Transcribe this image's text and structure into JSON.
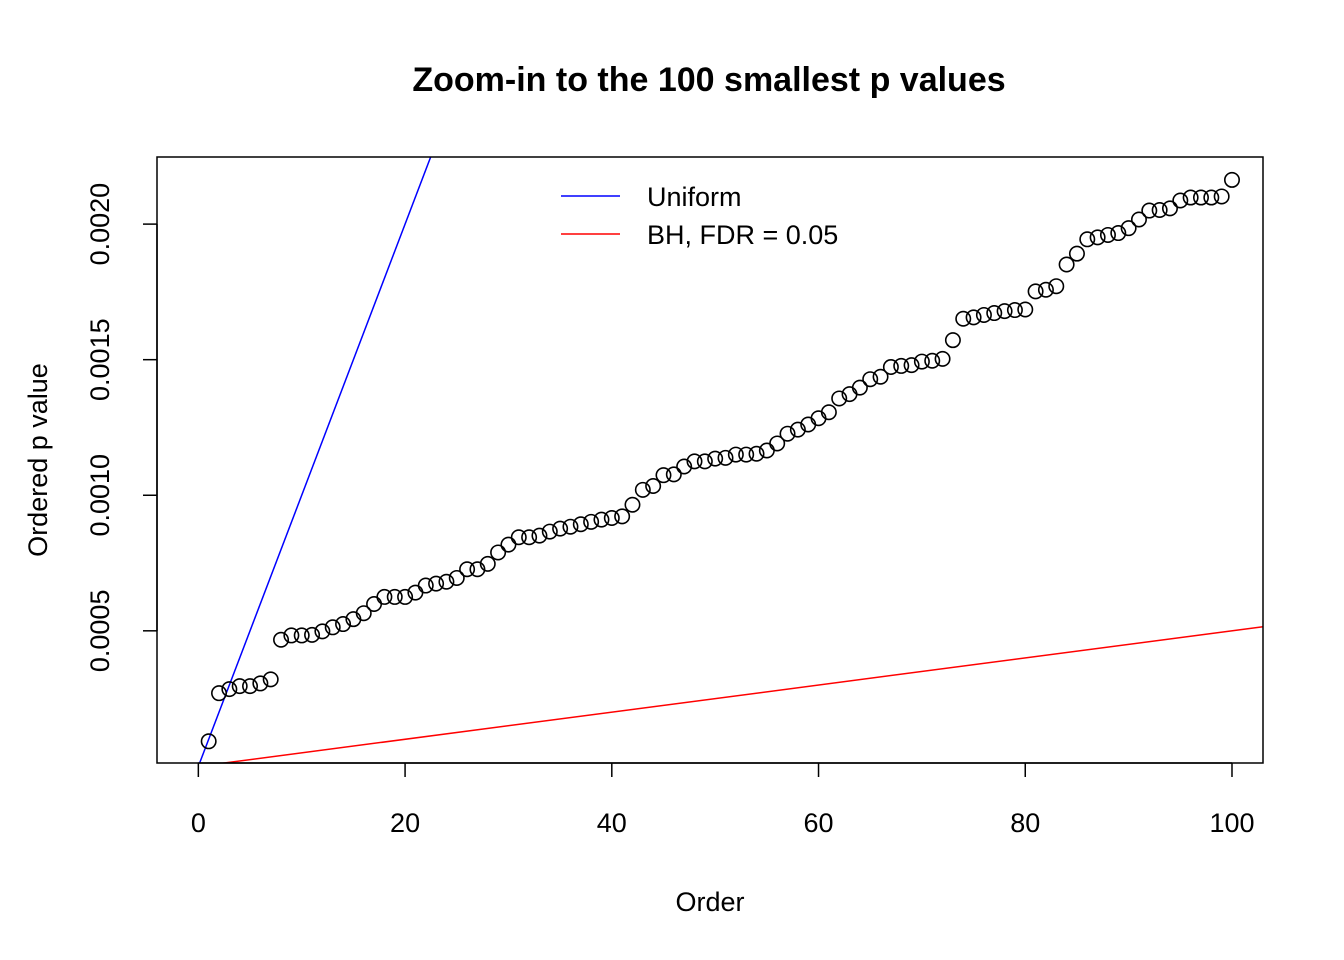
{
  "chart_data": {
    "type": "scatter",
    "title": "Zoom-in to the 100 smallest p values",
    "xlabel": "Order",
    "ylabel": "Ordered p value",
    "xlim": [
      -4,
      103
    ],
    "ylim": [
      1.25e-05,
      0.0022475
    ],
    "x_ticks": [
      0,
      20,
      40,
      60,
      80,
      100
    ],
    "x_tick_labels": [
      "0",
      "20",
      "40",
      "60",
      "80",
      "100"
    ],
    "y_ticks": [
      0.0005,
      0.001,
      0.0015,
      0.002
    ],
    "y_tick_labels": [
      "0.0005",
      "0.0010",
      "0.0015",
      "0.0020"
    ],
    "grid": false,
    "legend_position": "top-center",
    "series": [
      {
        "name": "Ordered p values",
        "kind": "points",
        "color": "#000000",
        "x": [
          1,
          2,
          3,
          4,
          5,
          6,
          7,
          8,
          9,
          10,
          11,
          12,
          13,
          14,
          15,
          16,
          17,
          18,
          19,
          20,
          21,
          22,
          23,
          24,
          25,
          26,
          27,
          28,
          29,
          30,
          31,
          32,
          33,
          34,
          35,
          36,
          37,
          38,
          39,
          40,
          41,
          42,
          43,
          44,
          45,
          46,
          47,
          48,
          49,
          50,
          51,
          52,
          53,
          54,
          55,
          56,
          57,
          58,
          59,
          60,
          61,
          62,
          63,
          64,
          65,
          66,
          67,
          68,
          69,
          70,
          71,
          72,
          73,
          74,
          75,
          76,
          77,
          78,
          79,
          80,
          81,
          82,
          83,
          84,
          85,
          86,
          87,
          88,
          89,
          90,
          91,
          92,
          93,
          94,
          95,
          96,
          97,
          98,
          99,
          100
        ],
        "values": [
          9.25e-05,
          0.00027,
          0.000285,
          0.000296,
          0.000296,
          0.000306,
          0.000321,
          0.000467,
          0.000483,
          0.000483,
          0.000485,
          0.000498,
          0.000513,
          0.000525,
          0.000543,
          0.000565,
          0.000599,
          0.000625,
          0.000625,
          0.000625,
          0.000641,
          0.000667,
          0.000674,
          0.000681,
          0.000695,
          0.000727,
          0.000727,
          0.000747,
          0.000789,
          0.000818,
          0.000845,
          0.000845,
          0.000851,
          0.000866,
          0.000877,
          0.000884,
          0.000893,
          0.000902,
          0.00091,
          0.000916,
          0.000922,
          0.000965,
          0.00102,
          0.001034,
          0.001074,
          0.001077,
          0.001106,
          0.001125,
          0.001125,
          0.001135,
          0.001138,
          0.00115,
          0.00115,
          0.001153,
          0.001165,
          0.001191,
          0.001227,
          0.001242,
          0.001261,
          0.001284,
          0.001306,
          0.001357,
          0.001373,
          0.001397,
          0.001428,
          0.001437,
          0.001473,
          0.001477,
          0.00148,
          0.001493,
          0.001496,
          0.001503,
          0.001572,
          0.001651,
          0.001656,
          0.001665,
          0.001672,
          0.001679,
          0.001683,
          0.001685,
          0.001752,
          0.001758,
          0.001771,
          0.001851,
          0.001891,
          0.001944,
          0.001951,
          0.00196,
          0.001967,
          0.001985,
          0.002017,
          0.00205,
          0.002052,
          0.002058,
          0.002087,
          0.002098,
          0.002098,
          0.002098,
          0.002102,
          0.002163
        ]
      },
      {
        "name": "Uniform",
        "kind": "line",
        "color": "#0000FF",
        "intercept": 0,
        "slope": 0.0001
      },
      {
        "name": "BH, FDR = 0.05",
        "kind": "line",
        "color": "#FF0000",
        "intercept": 0,
        "slope": 5e-06
      }
    ],
    "legend": [
      {
        "label": "Uniform",
        "color": "#0000FF"
      },
      {
        "label": "BH, FDR = 0.05",
        "color": "#FF0000"
      }
    ]
  }
}
